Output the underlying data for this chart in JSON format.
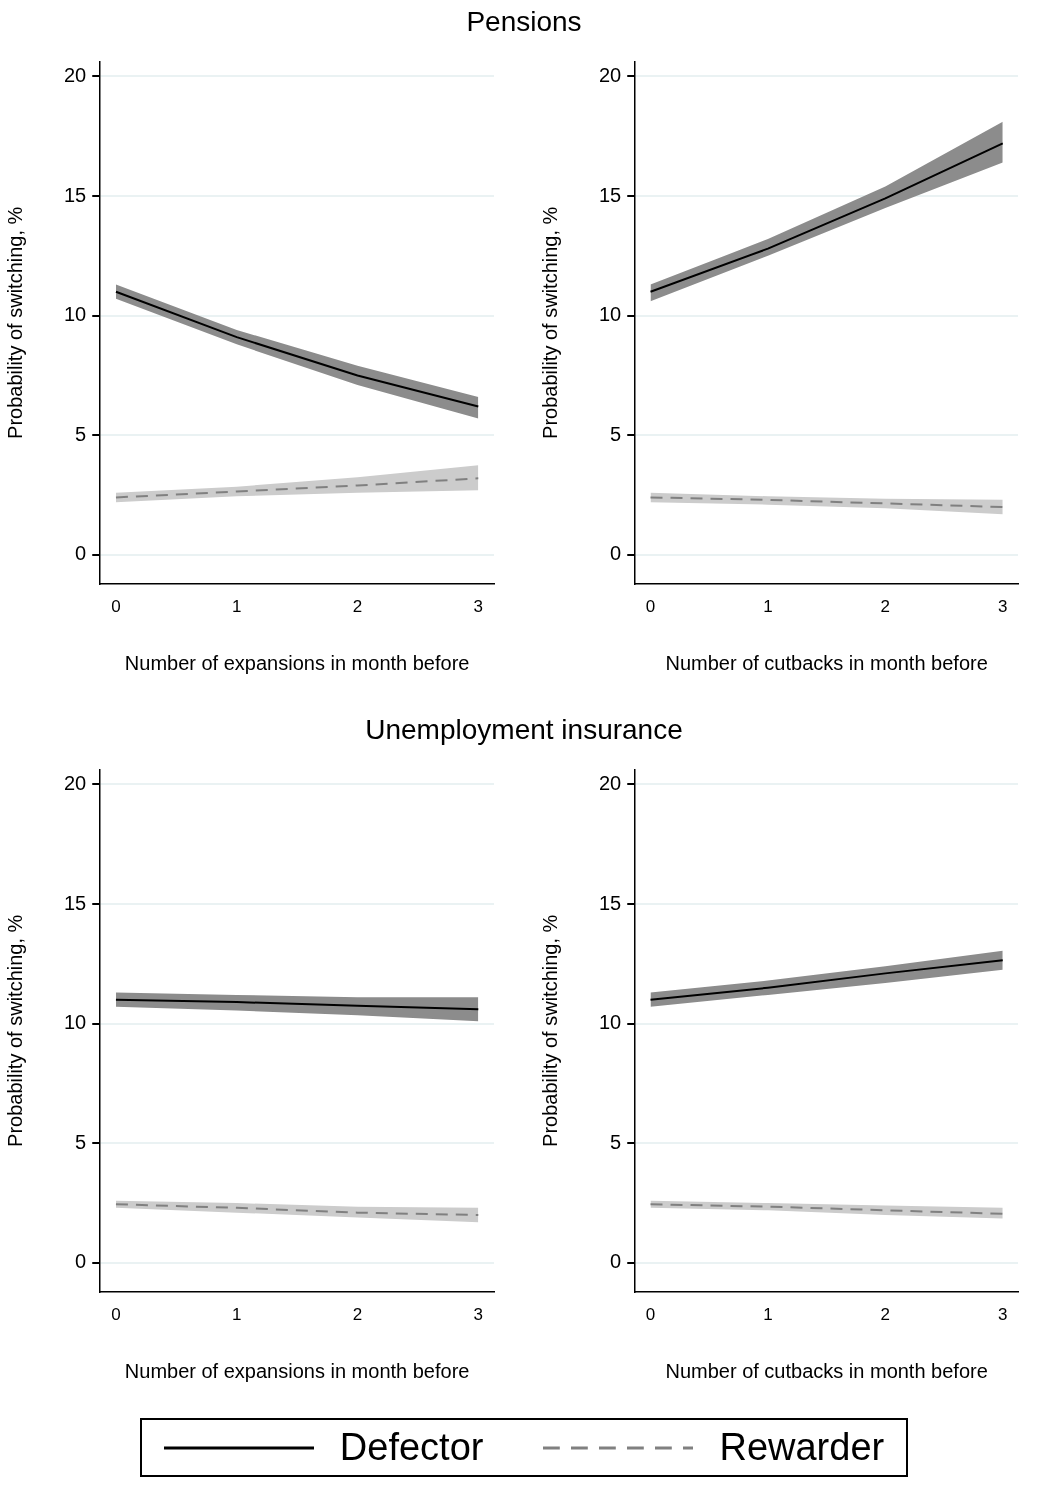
{
  "chart_data": [
    {
      "type": "line",
      "title": "Pensions",
      "xlabel": "Number of expansions in month before",
      "ylabel": "Probability of switching, %",
      "x": [
        0,
        1,
        2,
        3
      ],
      "xlim": [
        -0.13,
        3.13
      ],
      "xticks": [
        0,
        1,
        2,
        3
      ],
      "ylim": [
        -1.2,
        20.6
      ],
      "yticks": [
        0,
        5,
        10,
        15,
        20
      ],
      "grid": "y",
      "legend": "bottom",
      "series": [
        {
          "name": "Defector",
          "color": "#000000",
          "line_style": "solid",
          "values": [
            11.0,
            9.1,
            7.5,
            6.2
          ],
          "lower": [
            10.7,
            8.8,
            7.1,
            5.7
          ],
          "upper": [
            11.3,
            9.4,
            7.9,
            6.6
          ]
        },
        {
          "name": "Rewarder",
          "color": "#808080",
          "line_style": "dashed",
          "values": [
            2.4,
            2.65,
            2.9,
            3.2
          ],
          "lower": [
            2.2,
            2.45,
            2.6,
            2.7
          ],
          "upper": [
            2.6,
            2.85,
            3.25,
            3.75
          ]
        }
      ]
    },
    {
      "type": "line",
      "xlabel": "Number of cutbacks in month before",
      "ylabel": "Probability of switching, %",
      "x": [
        0,
        1,
        2,
        3
      ],
      "xlim": [
        -0.13,
        3.13
      ],
      "xticks": [
        0,
        1,
        2,
        3
      ],
      "ylim": [
        -1.2,
        20.6
      ],
      "yticks": [
        0,
        5,
        10,
        15,
        20
      ],
      "grid": "y",
      "series": [
        {
          "color": "#000000",
          "line_style": "solid",
          "values": [
            11.0,
            12.8,
            14.9,
            17.2
          ],
          "lower": [
            10.6,
            12.5,
            14.5,
            16.4
          ],
          "upper": [
            11.3,
            13.2,
            15.4,
            18.1
          ]
        },
        {
          "color": "#808080",
          "line_style": "dashed",
          "values": [
            2.4,
            2.3,
            2.15,
            2.0
          ],
          "lower": [
            2.2,
            2.1,
            1.95,
            1.7
          ],
          "upper": [
            2.6,
            2.45,
            2.35,
            2.3
          ]
        }
      ]
    },
    {
      "type": "line",
      "title": "Unemployment insurance",
      "xlabel": "Number of expansions in month before",
      "ylabel": "Probability of switching, %",
      "x": [
        0,
        1,
        2,
        3
      ],
      "xlim": [
        -0.13,
        3.13
      ],
      "xticks": [
        0,
        1,
        2,
        3
      ],
      "ylim": [
        -1.2,
        20.6
      ],
      "yticks": [
        0,
        5,
        10,
        15,
        20
      ],
      "grid": "y",
      "series": [
        {
          "color": "#000000",
          "line_style": "solid",
          "values": [
            11.0,
            10.9,
            10.75,
            10.6
          ],
          "lower": [
            10.7,
            10.55,
            10.35,
            10.1
          ],
          "upper": [
            11.3,
            11.2,
            11.1,
            11.1
          ]
        },
        {
          "color": "#808080",
          "line_style": "dashed",
          "values": [
            2.45,
            2.3,
            2.1,
            2.0
          ],
          "lower": [
            2.3,
            2.1,
            1.9,
            1.7
          ],
          "upper": [
            2.6,
            2.5,
            2.35,
            2.3
          ]
        }
      ]
    },
    {
      "type": "line",
      "xlabel": "Number of cutbacks in month before",
      "ylabel": "Probability of switching, %",
      "x": [
        0,
        1,
        2,
        3
      ],
      "xlim": [
        -0.13,
        3.13
      ],
      "xticks": [
        0,
        1,
        2,
        3
      ],
      "ylim": [
        -1.2,
        20.6
      ],
      "yticks": [
        0,
        5,
        10,
        15,
        20
      ],
      "grid": "y",
      "series": [
        {
          "color": "#000000",
          "line_style": "solid",
          "values": [
            11.0,
            11.5,
            12.1,
            12.65
          ],
          "lower": [
            10.7,
            11.2,
            11.7,
            12.25
          ],
          "upper": [
            11.3,
            11.8,
            12.4,
            13.05
          ]
        },
        {
          "color": "#808080",
          "line_style": "dashed",
          "values": [
            2.45,
            2.35,
            2.2,
            2.05
          ],
          "lower": [
            2.3,
            2.2,
            2.0,
            1.85
          ],
          "upper": [
            2.6,
            2.5,
            2.4,
            2.3
          ]
        }
      ]
    }
  ]
}
